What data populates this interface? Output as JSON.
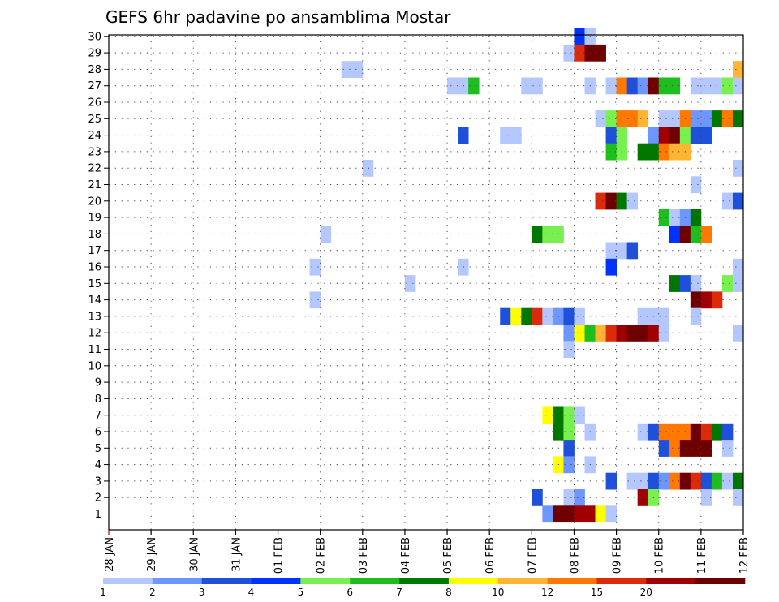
{
  "chart_data": {
    "type": "heatmap",
    "title": "GEFS 6hr padavine po ansamblima Mostar",
    "xlabel": "",
    "ylabel": "",
    "x_tick_labels": [
      "28 JAN",
      "29 JAN",
      "30 JAN",
      "31 JAN",
      "01 FEB",
      "02 FEB",
      "03 FEB",
      "04 FEB",
      "05 FEB",
      "06 FEB",
      "07 FEB",
      "08 FEB",
      "09 FEB",
      "10 FEB",
      "11 FEB",
      "12 FEB"
    ],
    "y_tick_labels": [
      "1",
      "2",
      "3",
      "4",
      "5",
      "6",
      "7",
      "8",
      "9",
      "10",
      "11",
      "12",
      "13",
      "14",
      "15",
      "16",
      "17",
      "18",
      "19",
      "20",
      "21",
      "22",
      "23",
      "24",
      "25",
      "26",
      "27",
      "28",
      "29",
      "30"
    ],
    "time_step_hours": 6,
    "members": 30,
    "grid": true,
    "colorbar": {
      "position": "bottom",
      "labels": [
        "1",
        "2",
        "3",
        "4",
        "5",
        "6",
        "7",
        "8",
        "10",
        "12",
        "15",
        "20"
      ],
      "colors": [
        "#b4c8ff",
        "#6e96ff",
        "#1e50dc",
        "#0032ff",
        "#78f050",
        "#1ebe1e",
        "#007800",
        "#ffff00",
        "#ffb432",
        "#ff7800",
        "#dc2a0a",
        "#a00000",
        "#6e0000"
      ]
    },
    "cells": [
      {
        "m": 30,
        "s": [
          [
            44,
            3
          ],
          [
            45,
            0
          ]
        ]
      },
      {
        "m": 29,
        "s": [
          [
            43,
            0
          ],
          [
            44,
            10
          ],
          [
            45,
            12
          ],
          [
            46,
            12
          ]
        ]
      },
      {
        "m": 28,
        "s": [
          [
            22,
            0
          ],
          [
            23,
            0
          ],
          [
            59,
            8
          ]
        ]
      },
      {
        "m": 27,
        "s": [
          [
            32,
            0
          ],
          [
            33,
            0
          ],
          [
            34,
            5
          ],
          [
            39,
            0
          ],
          [
            40,
            0
          ],
          [
            45,
            0
          ],
          [
            47,
            0
          ],
          [
            48,
            9
          ],
          [
            49,
            2
          ],
          [
            50,
            1
          ],
          [
            51,
            12
          ],
          [
            52,
            5
          ],
          [
            53,
            5
          ],
          [
            55,
            0
          ],
          [
            56,
            0
          ],
          [
            57,
            0
          ],
          [
            58,
            4
          ],
          [
            59,
            0
          ]
        ]
      },
      {
        "m": 25,
        "s": [
          [
            46,
            0
          ],
          [
            47,
            4
          ],
          [
            48,
            9
          ],
          [
            49,
            9
          ],
          [
            50,
            8
          ],
          [
            52,
            0
          ],
          [
            53,
            0
          ],
          [
            54,
            9
          ],
          [
            55,
            1
          ],
          [
            56,
            1
          ],
          [
            57,
            6
          ],
          [
            58,
            9
          ],
          [
            59,
            6
          ]
        ]
      },
      {
        "m": 24,
        "s": [
          [
            33,
            2
          ],
          [
            37,
            0
          ],
          [
            38,
            0
          ],
          [
            47,
            2
          ],
          [
            48,
            4
          ],
          [
            51,
            1
          ],
          [
            52,
            11
          ],
          [
            53,
            12
          ],
          [
            54,
            4
          ],
          [
            55,
            2
          ],
          [
            56,
            2
          ]
        ]
      },
      {
        "m": 23,
        "s": [
          [
            47,
            5
          ],
          [
            48,
            4
          ],
          [
            50,
            6
          ],
          [
            51,
            6
          ],
          [
            52,
            9
          ],
          [
            53,
            8
          ],
          [
            54,
            8
          ]
        ]
      },
      {
        "m": 22,
        "s": [
          [
            24,
            0
          ],
          [
            59,
            0
          ]
        ]
      },
      {
        "m": 21,
        "s": [
          [
            55,
            0
          ]
        ]
      },
      {
        "m": 20,
        "s": [
          [
            46,
            10
          ],
          [
            47,
            12
          ],
          [
            48,
            6
          ],
          [
            49,
            0
          ],
          [
            58,
            0
          ],
          [
            59,
            2
          ]
        ]
      },
      {
        "m": 19,
        "s": [
          [
            52,
            5
          ],
          [
            53,
            0
          ],
          [
            54,
            1
          ],
          [
            55,
            6
          ]
        ]
      },
      {
        "m": 18,
        "s": [
          [
            20,
            0
          ],
          [
            40,
            6
          ],
          [
            41,
            4
          ],
          [
            42,
            4
          ],
          [
            53,
            3
          ],
          [
            54,
            12
          ],
          [
            55,
            5
          ],
          [
            56,
            9
          ]
        ]
      },
      {
        "m": 17,
        "s": [
          [
            47,
            0
          ],
          [
            48,
            0
          ],
          [
            49,
            2
          ]
        ]
      },
      {
        "m": 16,
        "s": [
          [
            19,
            0
          ],
          [
            33,
            0
          ],
          [
            47,
            3
          ],
          [
            59,
            0
          ]
        ]
      },
      {
        "m": 15,
        "s": [
          [
            28,
            0
          ],
          [
            53,
            6
          ],
          [
            54,
            2
          ],
          [
            55,
            0
          ],
          [
            58,
            4
          ],
          [
            59,
            0
          ]
        ]
      },
      {
        "m": 14,
        "s": [
          [
            19,
            0
          ],
          [
            55,
            12
          ],
          [
            56,
            11
          ],
          [
            57,
            10
          ]
        ]
      },
      {
        "m": 13,
        "s": [
          [
            37,
            2
          ],
          [
            38,
            7
          ],
          [
            39,
            6
          ],
          [
            40,
            10
          ],
          [
            41,
            0
          ],
          [
            42,
            1
          ],
          [
            43,
            2
          ],
          [
            44,
            0
          ],
          [
            50,
            0
          ],
          [
            51,
            0
          ],
          [
            52,
            0
          ],
          [
            55,
            0
          ]
        ]
      },
      {
        "m": 12,
        "s": [
          [
            43,
            1
          ],
          [
            44,
            7
          ],
          [
            45,
            5
          ],
          [
            46,
            8
          ],
          [
            47,
            10
          ],
          [
            48,
            11
          ],
          [
            49,
            12
          ],
          [
            50,
            12
          ],
          [
            51,
            11
          ],
          [
            52,
            0
          ],
          [
            59,
            0
          ]
        ]
      },
      {
        "m": 11,
        "s": [
          [
            43,
            0
          ]
        ]
      },
      {
        "m": 7,
        "s": [
          [
            41,
            7
          ],
          [
            42,
            6
          ],
          [
            43,
            4
          ],
          [
            44,
            0
          ]
        ]
      },
      {
        "m": 6,
        "s": [
          [
            42,
            6
          ],
          [
            43,
            4
          ],
          [
            45,
            0
          ],
          [
            50,
            0
          ],
          [
            51,
            2
          ],
          [
            52,
            9
          ],
          [
            53,
            9
          ],
          [
            54,
            9
          ],
          [
            55,
            12
          ],
          [
            56,
            10
          ],
          [
            57,
            6
          ],
          [
            58,
            2
          ]
        ]
      },
      {
        "m": 5,
        "s": [
          [
            43,
            2
          ],
          [
            52,
            2
          ],
          [
            53,
            9
          ],
          [
            54,
            12
          ],
          [
            55,
            12
          ],
          [
            56,
            12
          ],
          [
            58,
            0
          ]
        ]
      },
      {
        "m": 4,
        "s": [
          [
            42,
            7
          ],
          [
            43,
            1
          ],
          [
            45,
            0
          ]
        ]
      },
      {
        "m": 3,
        "s": [
          [
            47,
            2
          ],
          [
            49,
            0
          ],
          [
            50,
            0
          ],
          [
            51,
            2
          ],
          [
            52,
            1
          ],
          [
            53,
            9
          ],
          [
            54,
            12
          ],
          [
            55,
            10
          ],
          [
            56,
            2
          ],
          [
            57,
            5
          ],
          [
            58,
            0
          ],
          [
            59,
            6
          ]
        ]
      },
      {
        "m": 2,
        "s": [
          [
            40,
            2
          ],
          [
            43,
            0
          ],
          [
            44,
            1
          ],
          [
            50,
            11
          ],
          [
            51,
            4
          ],
          [
            56,
            0
          ],
          [
            59,
            0
          ]
        ]
      },
      {
        "m": 1,
        "s": [
          [
            41,
            1
          ],
          [
            42,
            12
          ],
          [
            43,
            12
          ],
          [
            44,
            11
          ],
          [
            45,
            11
          ],
          [
            46,
            7
          ],
          [
            47,
            0
          ]
        ]
      }
    ]
  }
}
